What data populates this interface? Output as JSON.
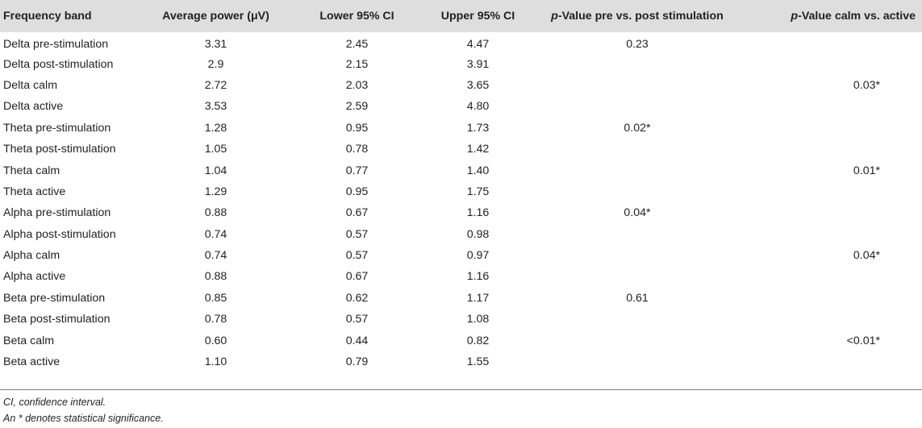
{
  "table": {
    "headers": {
      "frequency_band": "Frequency band",
      "average_power": "Average power (μV)",
      "lower_ci": "Lower 95% CI",
      "upper_ci": "Upper 95% CI",
      "p_prepost_italic": "p",
      "p_prepost_rest": "-Value pre vs. post stimulation",
      "p_calm_italic": "p",
      "p_calm_rest": "-Value calm vs. active"
    },
    "rows": [
      {
        "band": "Delta pre-stimulation",
        "avg": "3.31",
        "lower": "2.45",
        "upper": "4.47",
        "p_prepost": "0.23",
        "p_calm": ""
      },
      {
        "band": "Delta post-stimulation",
        "avg": "2.9",
        "lower": "2.15",
        "upper": "3.91",
        "p_prepost": "",
        "p_calm": ""
      },
      {
        "band": "Delta calm",
        "avg": "2.72",
        "lower": "2.03",
        "upper": "3.65",
        "p_prepost": "",
        "p_calm": "0.03*"
      },
      {
        "band": "Delta active",
        "avg": "3.53",
        "lower": "2.59",
        "upper": "4.80",
        "p_prepost": "",
        "p_calm": ""
      },
      {
        "band": "Theta pre-stimulation",
        "avg": "1.28",
        "lower": "0.95",
        "upper": "1.73",
        "p_prepost": "0.02*",
        "p_calm": ""
      },
      {
        "band": "Theta post-stimulation",
        "avg": "1.05",
        "lower": "0.78",
        "upper": "1.42",
        "p_prepost": "",
        "p_calm": ""
      },
      {
        "band": "Theta calm",
        "avg": "1.04",
        "lower": "0.77",
        "upper": "1.40",
        "p_prepost": "",
        "p_calm": "0.01*"
      },
      {
        "band": "Theta active",
        "avg": "1.29",
        "lower": "0.95",
        "upper": "1.75",
        "p_prepost": "",
        "p_calm": ""
      },
      {
        "band": "Alpha pre-stimulation",
        "avg": "0.88",
        "lower": "0.67",
        "upper": "1.16",
        "p_prepost": "0.04*",
        "p_calm": ""
      },
      {
        "band": "Alpha post-stimulation",
        "avg": "0.74",
        "lower": "0.57",
        "upper": "0.98",
        "p_prepost": "",
        "p_calm": ""
      },
      {
        "band": "Alpha calm",
        "avg": "0.74",
        "lower": "0.57",
        "upper": "0.97",
        "p_prepost": "",
        "p_calm": "0.04*"
      },
      {
        "band": "Alpha active",
        "avg": "0.88",
        "lower": "0.67",
        "upper": "1.16",
        "p_prepost": "",
        "p_calm": ""
      },
      {
        "band": "Beta pre-stimulation",
        "avg": "0.85",
        "lower": "0.62",
        "upper": "1.17",
        "p_prepost": "0.61",
        "p_calm": ""
      },
      {
        "band": "Beta post-stimulation",
        "avg": "0.78",
        "lower": "0.57",
        "upper": "1.08",
        "p_prepost": "",
        "p_calm": ""
      },
      {
        "band": "Beta calm",
        "avg": "0.60",
        "lower": "0.44",
        "upper": "0.82",
        "p_prepost": "",
        "p_calm": "<0.01*"
      },
      {
        "band": "Beta active",
        "avg": "1.10",
        "lower": "0.79",
        "upper": "1.55",
        "p_prepost": "",
        "p_calm": ""
      }
    ]
  },
  "footnotes": {
    "ci": "CI, confidence interval.",
    "significance": "An * denotes statistical significance."
  },
  "colors": {
    "header_background": "#dedede",
    "text": "#231f20",
    "rule": "#7f7f7f"
  }
}
